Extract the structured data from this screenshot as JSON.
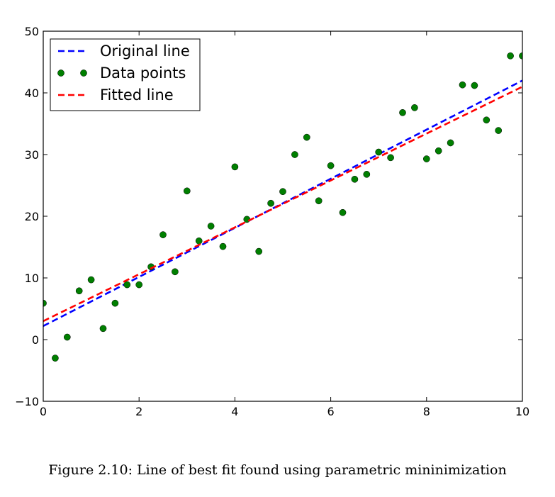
{
  "chart_data": {
    "type": "scatter",
    "xlim": [
      0,
      10
    ],
    "ylim": [
      -10,
      50
    ],
    "xticks": [
      0,
      2,
      4,
      6,
      8,
      10
    ],
    "yticks": [
      -10,
      0,
      10,
      20,
      30,
      40,
      50
    ],
    "grid": false,
    "legend_position": "top-left",
    "series": [
      {
        "name": "Original line",
        "kind": "line",
        "style": "dashed",
        "color": "#0000ff",
        "x": [
          0,
          10
        ],
        "y": [
          2.2,
          42.0
        ]
      },
      {
        "name": "Data points",
        "kind": "scatter",
        "color": "#007f00",
        "x": [
          0,
          0.25,
          0.5,
          0.75,
          1.0,
          1.25,
          1.5,
          1.75,
          2.0,
          2.25,
          2.5,
          2.75,
          3.0,
          3.25,
          3.5,
          3.75,
          4.0,
          4.25,
          4.5,
          4.75,
          5.0,
          5.25,
          5.5,
          5.75,
          6.0,
          6.25,
          6.5,
          6.75,
          7.0,
          7.25,
          7.5,
          7.75,
          8.0,
          8.25,
          8.5,
          8.75,
          9.0,
          9.25,
          9.5,
          9.75,
          10.0
        ],
        "y": [
          5.9,
          -3.0,
          0.4,
          7.9,
          9.7,
          1.8,
          5.9,
          8.9,
          8.9,
          11.8,
          17.0,
          11.0,
          24.1,
          16.0,
          18.4,
          15.1,
          28.0,
          19.5,
          14.3,
          22.1,
          24.0,
          30.0,
          32.8,
          22.5,
          28.2,
          20.6,
          26.0,
          26.8,
          30.4,
          29.5,
          36.8,
          37.6,
          29.3,
          30.6,
          31.9,
          41.3,
          41.2,
          35.6,
          33.9,
          46.0,
          46.0
        ]
      },
      {
        "name": "Fitted line",
        "kind": "line",
        "style": "dashed",
        "color": "#ff0000",
        "x": [
          0,
          10
        ],
        "y": [
          3.0,
          41.0
        ]
      }
    ]
  },
  "caption": "Figure 2.10: Line of best fit found using parametric mininimization"
}
